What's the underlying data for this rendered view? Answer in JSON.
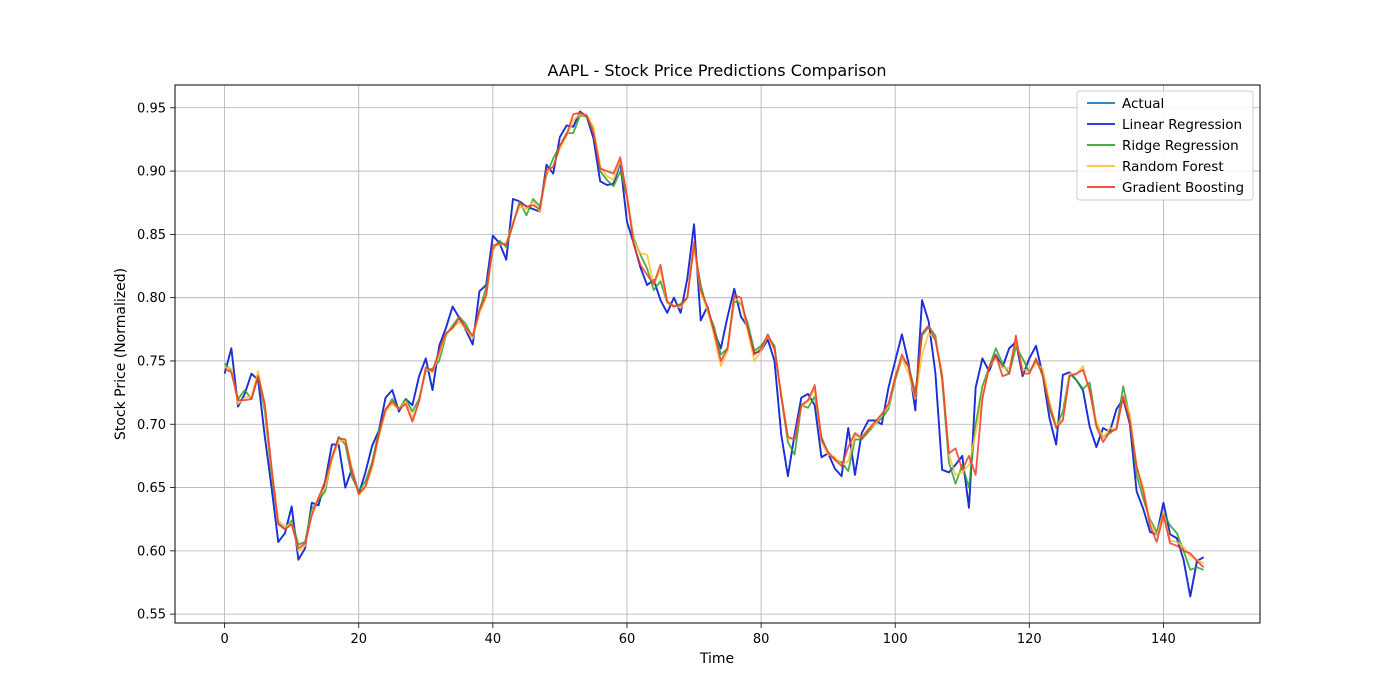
{
  "chart_data": {
    "type": "line",
    "title": "AAPL - Stock Price Predictions Comparison",
    "xlabel": "Time",
    "ylabel": "Stock Price (Normalized)",
    "xlim": [
      -7.4,
      154.4
    ],
    "ylim": [
      0.543,
      0.968
    ],
    "xticks": [
      0,
      20,
      40,
      60,
      80,
      100,
      120,
      140
    ],
    "yticks": [
      0.55,
      0.6,
      0.65,
      0.7,
      0.75,
      0.8,
      0.85,
      0.9,
      0.95
    ],
    "ytick_labels": [
      "0.55",
      "0.60",
      "0.65",
      "0.70",
      "0.75",
      "0.80",
      "0.85",
      "0.90",
      "0.95"
    ],
    "grid": true,
    "legend": "top-right",
    "series": [
      {
        "name": "Actual",
        "color": "#1f77b4",
        "values": [
          0.74,
          0.76,
          0.714,
          0.724,
          0.74,
          0.735,
          0.69,
          0.65,
          0.607,
          0.614,
          0.635,
          0.593,
          0.602,
          0.638,
          0.636,
          0.655,
          0.684,
          0.684,
          0.65,
          0.665,
          0.645,
          0.662,
          0.683,
          0.695,
          0.721,
          0.727,
          0.71,
          0.72,
          0.715,
          0.738,
          0.752,
          0.727,
          0.762,
          0.776,
          0.793,
          0.784,
          0.774,
          0.763,
          0.805,
          0.81,
          0.849,
          0.843,
          0.83,
          0.878,
          0.876,
          0.872,
          0.87,
          0.868,
          0.905,
          0.898,
          0.927,
          0.936,
          0.935,
          0.947,
          0.943,
          0.926,
          0.892,
          0.889,
          0.89,
          0.907,
          0.86,
          0.843,
          0.824,
          0.81,
          0.814,
          0.798,
          0.788,
          0.8,
          0.788,
          0.815,
          0.858,
          0.782,
          0.793,
          0.773,
          0.76,
          0.785,
          0.807,
          0.785,
          0.777,
          0.756,
          0.758,
          0.767,
          0.75,
          0.692,
          0.659,
          0.692,
          0.721,
          0.724,
          0.715,
          0.674,
          0.677,
          0.665,
          0.659,
          0.697,
          0.66,
          0.693,
          0.703,
          0.703,
          0.7,
          0.729,
          0.75,
          0.771,
          0.748,
          0.711,
          0.798,
          0.781,
          0.74,
          0.664,
          0.662,
          0.668,
          0.675,
          0.634,
          0.729,
          0.752,
          0.742,
          0.755,
          0.745,
          0.76,
          0.765,
          0.738,
          0.752,
          0.762,
          0.739,
          0.705,
          0.684,
          0.739,
          0.741,
          0.735,
          0.727,
          0.698,
          0.682,
          0.697,
          0.694,
          0.712,
          0.72,
          0.7,
          0.647,
          0.633,
          0.615,
          0.613,
          0.638,
          0.613,
          0.61,
          0.593,
          0.564,
          0.592,
          0.595
        ]
      },
      {
        "name": "Linear Regression",
        "color": "#1e1ee0",
        "values": [
          0.74,
          0.76,
          0.714,
          0.724,
          0.74,
          0.735,
          0.69,
          0.65,
          0.607,
          0.614,
          0.635,
          0.593,
          0.602,
          0.638,
          0.636,
          0.655,
          0.684,
          0.684,
          0.65,
          0.665,
          0.645,
          0.662,
          0.683,
          0.695,
          0.721,
          0.727,
          0.71,
          0.72,
          0.715,
          0.738,
          0.752,
          0.727,
          0.762,
          0.776,
          0.793,
          0.784,
          0.774,
          0.763,
          0.805,
          0.81,
          0.849,
          0.843,
          0.83,
          0.878,
          0.876,
          0.872,
          0.87,
          0.868,
          0.905,
          0.898,
          0.927,
          0.936,
          0.935,
          0.947,
          0.943,
          0.926,
          0.892,
          0.889,
          0.89,
          0.907,
          0.86,
          0.843,
          0.824,
          0.81,
          0.814,
          0.798,
          0.788,
          0.8,
          0.788,
          0.815,
          0.858,
          0.782,
          0.793,
          0.773,
          0.76,
          0.785,
          0.807,
          0.785,
          0.777,
          0.756,
          0.758,
          0.767,
          0.75,
          0.692,
          0.659,
          0.692,
          0.721,
          0.724,
          0.715,
          0.674,
          0.677,
          0.665,
          0.659,
          0.697,
          0.66,
          0.693,
          0.703,
          0.703,
          0.7,
          0.729,
          0.75,
          0.771,
          0.748,
          0.711,
          0.798,
          0.781,
          0.74,
          0.664,
          0.662,
          0.668,
          0.675,
          0.634,
          0.729,
          0.752,
          0.742,
          0.755,
          0.745,
          0.76,
          0.765,
          0.738,
          0.752,
          0.762,
          0.739,
          0.705,
          0.684,
          0.739,
          0.741,
          0.735,
          0.727,
          0.698,
          0.682,
          0.697,
          0.694,
          0.712,
          0.72,
          0.7,
          0.647,
          0.633,
          0.615,
          0.613,
          0.638,
          0.613,
          0.61,
          0.593,
          0.564,
          0.592,
          0.595
        ]
      },
      {
        "name": "Ridge Regression",
        "color": "#2ca02c",
        "values": [
          0.748,
          0.742,
          0.72,
          0.727,
          0.72,
          0.738,
          0.71,
          0.66,
          0.622,
          0.617,
          0.624,
          0.605,
          0.607,
          0.633,
          0.64,
          0.647,
          0.673,
          0.69,
          0.684,
          0.658,
          0.647,
          0.655,
          0.67,
          0.695,
          0.711,
          0.72,
          0.712,
          0.72,
          0.71,
          0.72,
          0.742,
          0.744,
          0.75,
          0.77,
          0.778,
          0.785,
          0.779,
          0.768,
          0.79,
          0.808,
          0.838,
          0.845,
          0.84,
          0.858,
          0.876,
          0.865,
          0.878,
          0.872,
          0.897,
          0.91,
          0.92,
          0.93,
          0.93,
          0.944,
          0.943,
          0.933,
          0.9,
          0.893,
          0.888,
          0.9,
          0.88,
          0.847,
          0.834,
          0.823,
          0.806,
          0.813,
          0.796,
          0.793,
          0.795,
          0.8,
          0.84,
          0.81,
          0.79,
          0.777,
          0.755,
          0.76,
          0.797,
          0.795,
          0.78,
          0.758,
          0.762,
          0.769,
          0.762,
          0.722,
          0.686,
          0.676,
          0.715,
          0.713,
          0.722,
          0.69,
          0.677,
          0.672,
          0.67,
          0.663,
          0.688,
          0.688,
          0.694,
          0.7,
          0.705,
          0.712,
          0.735,
          0.752,
          0.746,
          0.725,
          0.77,
          0.777,
          0.77,
          0.735,
          0.67,
          0.653,
          0.668,
          0.65,
          0.7,
          0.73,
          0.745,
          0.76,
          0.748,
          0.74,
          0.761,
          0.752,
          0.741,
          0.75,
          0.742,
          0.712,
          0.698,
          0.71,
          0.74,
          0.735,
          0.728,
          0.733,
          0.7,
          0.69,
          0.693,
          0.697,
          0.73,
          0.705,
          0.66,
          0.641,
          0.625,
          0.615,
          0.63,
          0.62,
          0.614,
          0.6,
          0.585,
          0.587,
          0.585
        ]
      },
      {
        "name": "Random Forest",
        "color": "#ffbf33",
        "values": [
          0.745,
          0.744,
          0.716,
          0.721,
          0.722,
          0.742,
          0.714,
          0.664,
          0.624,
          0.619,
          0.622,
          0.6,
          0.604,
          0.63,
          0.642,
          0.65,
          0.672,
          0.686,
          0.688,
          0.665,
          0.644,
          0.65,
          0.665,
          0.69,
          0.71,
          0.716,
          0.712,
          0.718,
          0.705,
          0.718,
          0.744,
          0.741,
          0.755,
          0.771,
          0.776,
          0.781,
          0.775,
          0.768,
          0.788,
          0.8,
          0.84,
          0.842,
          0.843,
          0.86,
          0.872,
          0.87,
          0.876,
          0.868,
          0.899,
          0.904,
          0.918,
          0.928,
          0.94,
          0.945,
          0.944,
          0.935,
          0.904,
          0.896,
          0.893,
          0.908,
          0.882,
          0.845,
          0.835,
          0.834,
          0.81,
          0.822,
          0.796,
          0.794,
          0.792,
          0.8,
          0.84,
          0.804,
          0.79,
          0.77,
          0.746,
          0.758,
          0.8,
          0.796,
          0.774,
          0.75,
          0.758,
          0.77,
          0.758,
          0.725,
          0.689,
          0.688,
          0.714,
          0.718,
          0.728,
          0.686,
          0.676,
          0.674,
          0.668,
          0.671,
          0.691,
          0.69,
          0.696,
          0.7,
          0.708,
          0.714,
          0.738,
          0.752,
          0.74,
          0.72,
          0.755,
          0.772,
          0.767,
          0.74,
          0.676,
          0.66,
          0.662,
          0.668,
          0.693,
          0.722,
          0.745,
          0.752,
          0.745,
          0.744,
          0.766,
          0.744,
          0.741,
          0.748,
          0.744,
          0.718,
          0.699,
          0.704,
          0.74,
          0.739,
          0.746,
          0.725,
          0.702,
          0.689,
          0.697,
          0.696,
          0.722,
          0.708,
          0.666,
          0.65,
          0.623,
          0.612,
          0.63,
          0.608,
          0.607,
          0.603,
          0.596,
          0.593,
          0.59
        ]
      },
      {
        "name": "Gradient Boosting",
        "color": "#ee3a2a",
        "values": [
          0.744,
          0.741,
          0.719,
          0.719,
          0.72,
          0.738,
          0.716,
          0.666,
          0.621,
          0.617,
          0.621,
          0.602,
          0.606,
          0.628,
          0.642,
          0.655,
          0.674,
          0.689,
          0.688,
          0.662,
          0.645,
          0.651,
          0.668,
          0.692,
          0.712,
          0.718,
          0.712,
          0.716,
          0.702,
          0.718,
          0.745,
          0.742,
          0.758,
          0.772,
          0.776,
          0.784,
          0.776,
          0.77,
          0.79,
          0.802,
          0.841,
          0.843,
          0.842,
          0.858,
          0.875,
          0.872,
          0.873,
          0.87,
          0.901,
          0.903,
          0.92,
          0.929,
          0.945,
          0.946,
          0.944,
          0.93,
          0.902,
          0.9,
          0.898,
          0.911,
          0.88,
          0.842,
          0.826,
          0.818,
          0.811,
          0.826,
          0.797,
          0.793,
          0.794,
          0.8,
          0.844,
          0.806,
          0.793,
          0.773,
          0.75,
          0.76,
          0.802,
          0.8,
          0.776,
          0.755,
          0.76,
          0.771,
          0.76,
          0.722,
          0.69,
          0.688,
          0.715,
          0.719,
          0.731,
          0.688,
          0.678,
          0.672,
          0.667,
          0.682,
          0.693,
          0.689,
          0.696,
          0.702,
          0.708,
          0.716,
          0.737,
          0.755,
          0.745,
          0.722,
          0.772,
          0.778,
          0.766,
          0.738,
          0.677,
          0.681,
          0.664,
          0.675,
          0.66,
          0.72,
          0.745,
          0.755,
          0.738,
          0.74,
          0.77,
          0.74,
          0.74,
          0.752,
          0.738,
          0.715,
          0.697,
          0.703,
          0.738,
          0.74,
          0.743,
          0.727,
          0.698,
          0.686,
          0.694,
          0.696,
          0.722,
          0.702,
          0.667,
          0.647,
          0.62,
          0.607,
          0.628,
          0.606,
          0.604,
          0.6,
          0.598,
          0.592,
          0.587
        ]
      }
    ]
  }
}
